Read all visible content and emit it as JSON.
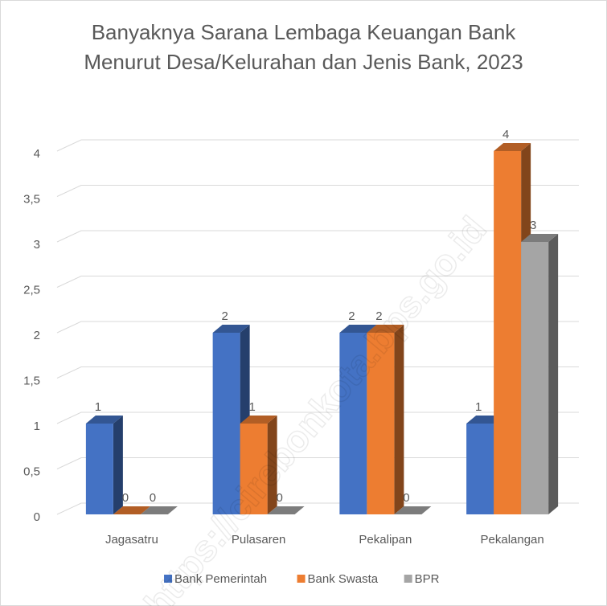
{
  "chart_data": {
    "type": "bar3d",
    "title": "Banyaknya Sarana Lembaga Keuangan Bank Menurut Desa/Kelurahan dan Jenis Bank, 2023",
    "categories": [
      "Jagasatru",
      "Pulasaren",
      "Pekalipan",
      "Pekalangan"
    ],
    "series": [
      {
        "name": "Bank Pemerintah",
        "color": "#4472c4",
        "values": [
          1,
          2,
          2,
          1
        ]
      },
      {
        "name": "Bank Swasta",
        "color": "#ed7d31",
        "values": [
          0,
          1,
          2,
          4
        ]
      },
      {
        "name": "BPR",
        "color": "#a5a5a5",
        "values": [
          0,
          0,
          0,
          3
        ]
      }
    ],
    "ylim": [
      0,
      4
    ],
    "yticks": [
      0,
      {
        "value": 0.5,
        "label": "0,5"
      },
      1,
      {
        "value": 1.5,
        "label": "1,5"
      },
      2,
      {
        "value": 2.5,
        "label": "2,5"
      },
      3,
      {
        "value": 3.5,
        "label": "3,5"
      },
      4
    ],
    "grid": true,
    "legend": "bottom",
    "watermark": "https://cirebonkota.bps.go.id"
  }
}
